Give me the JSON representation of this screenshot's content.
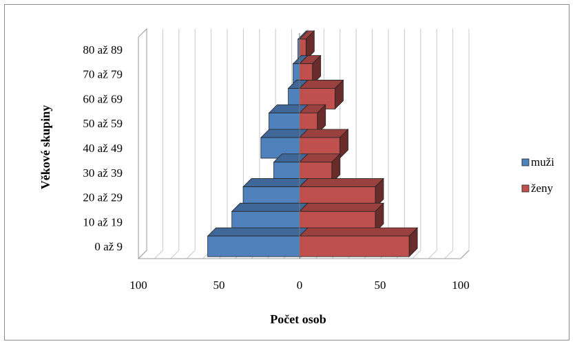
{
  "chart_data": {
    "type": "bar",
    "orientation": "horizontal",
    "style": "3d-population-pyramid",
    "categories": [
      "0 až 9",
      "10 až 19",
      "20 až 29",
      "30 až 39",
      "40 až 49",
      "50 až 59",
      "60 až 69",
      "70 až 79",
      "80 až 89"
    ],
    "series": [
      {
        "name": "muži",
        "color": "#4f81bd",
        "side": "left",
        "values": [
          57,
          42,
          35,
          16,
          24,
          19,
          7,
          4,
          1
        ]
      },
      {
        "name": "ženy",
        "color": "#c0504d",
        "side": "right",
        "values": [
          68,
          47,
          47,
          20,
          25,
          11,
          22,
          8,
          4
        ]
      }
    ],
    "xlabel": "Počet osob",
    "ylabel": "Věkové skupiny",
    "xlim": [
      -100,
      100
    ],
    "x_tick_labels": [
      "100",
      "50",
      "0",
      "50",
      "100"
    ],
    "grid": true,
    "legend_position": "right"
  }
}
